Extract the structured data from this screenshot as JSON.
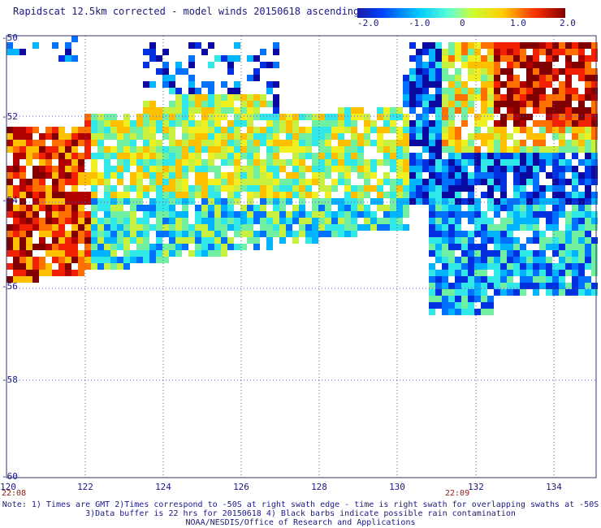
{
  "title": "Rapidscat 12.5km corrected - model winds 20150618 ascending",
  "colorbar": {
    "ticks": [
      "-2.0",
      "-1.0",
      "0",
      "1.0",
      "2.0"
    ],
    "colors": [
      "#1a1aa8",
      "#0066ff",
      "#33ccff",
      "#66ffcc",
      "#ccff33",
      "#ffcc00",
      "#ff6600",
      "#cc0000",
      "#800000"
    ]
  },
  "axes": {
    "lat_labels": [
      "-50",
      "-52",
      "-54",
      "-56",
      "-58",
      "-60"
    ],
    "lon_labels": [
      "120",
      "122",
      "124",
      "126",
      "128",
      "130",
      "132",
      "134"
    ],
    "lat_range": [
      -50,
      -60
    ],
    "lon_range": [
      120,
      135
    ]
  },
  "time_labels": [
    "22:08",
    "22:09"
  ],
  "notes": [
    "Note: 1) Times are GMT 2)Times correspond to -50S at right swath edge - time is right swath for overlapping swaths at -50S",
    "3)Data buffer is 22 hrs for 20150618 4) Black barbs indicate possible rain contamination",
    "NOAA/NESDIS/Office of Research and Applications"
  ]
}
